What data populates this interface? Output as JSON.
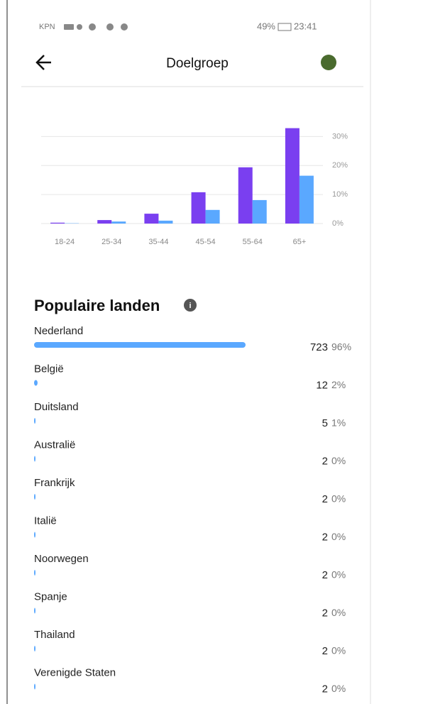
{
  "status_bar": {
    "carrier": "KPN",
    "battery": "49%",
    "time": "23:41"
  },
  "header": {
    "title": "Doelgroep"
  },
  "chart_data": {
    "type": "bar",
    "categories": [
      "18-24",
      "25-34",
      "35-44",
      "45-54",
      "55-64",
      "65+"
    ],
    "series": [
      {
        "color": "#7a3ff0",
        "values": [
          0.3,
          1.2,
          3.4,
          10.8,
          19.4,
          32.9
        ]
      },
      {
        "color": "#5aa8ff",
        "values": [
          0.1,
          0.7,
          1.0,
          4.7,
          8.1,
          16.5
        ]
      }
    ],
    "ylim": [
      0,
      35
    ],
    "yticks": [
      {
        "value": 0,
        "label": "0%"
      },
      {
        "value": 10,
        "label": "10%"
      },
      {
        "value": 20,
        "label": "20%"
      },
      {
        "value": 30,
        "label": "30%"
      }
    ],
    "grid": true
  },
  "countries": {
    "title": "Populaire landen",
    "rows": [
      {
        "name": "Nederland",
        "count": 723,
        "percent": "96%"
      },
      {
        "name": "België",
        "count": 12,
        "percent": "2%"
      },
      {
        "name": "Duitsland",
        "count": 5,
        "percent": "1%"
      },
      {
        "name": "Australië",
        "count": 2,
        "percent": "0%"
      },
      {
        "name": "Frankrijk",
        "count": 2,
        "percent": "0%"
      },
      {
        "name": "Italië",
        "count": 2,
        "percent": "0%"
      },
      {
        "name": "Noorwegen",
        "count": 2,
        "percent": "0%"
      },
      {
        "name": "Spanje",
        "count": 2,
        "percent": "0%"
      },
      {
        "name": "Thailand",
        "count": 2,
        "percent": "0%"
      },
      {
        "name": "Verenigde Staten",
        "count": 2,
        "percent": "0%"
      }
    ]
  }
}
